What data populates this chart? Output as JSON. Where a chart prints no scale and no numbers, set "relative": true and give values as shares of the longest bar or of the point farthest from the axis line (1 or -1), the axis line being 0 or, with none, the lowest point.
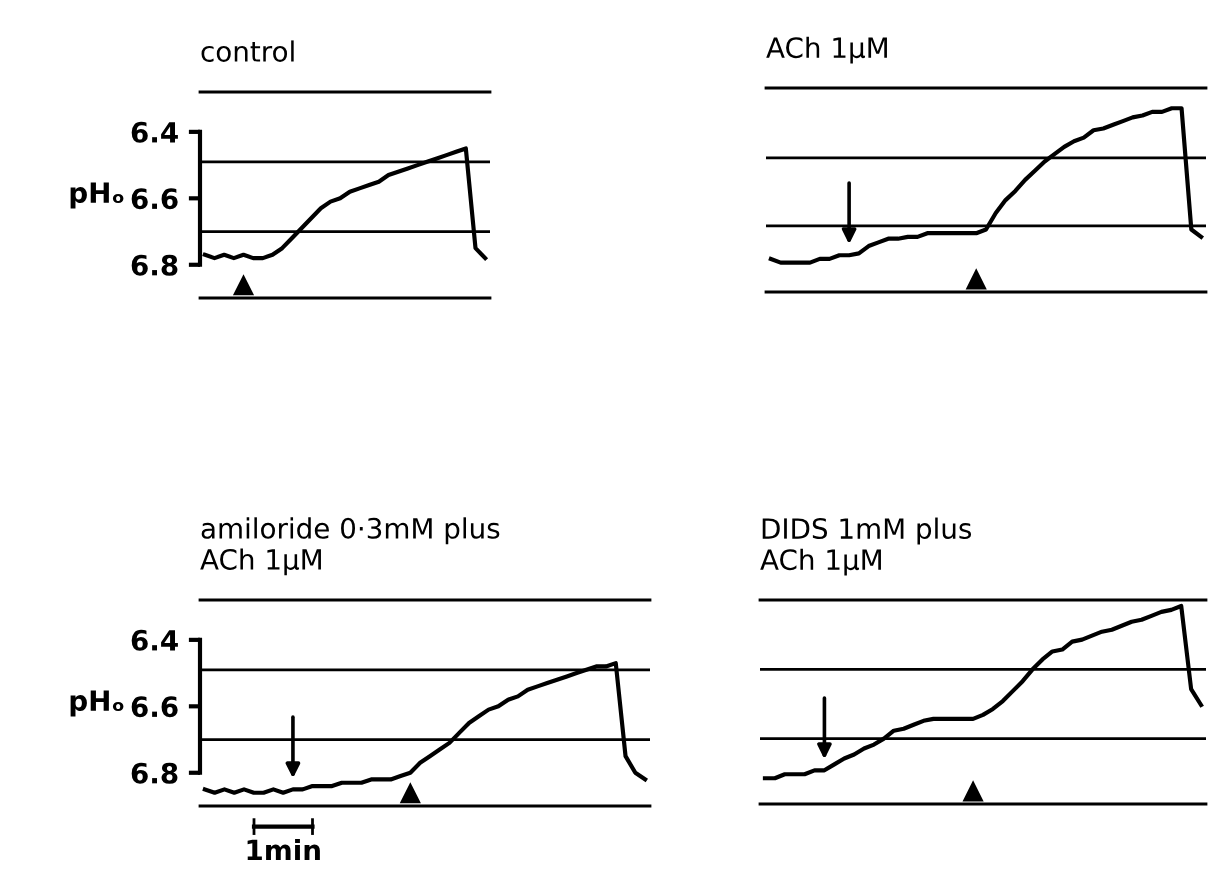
{
  "chart_data": [
    {
      "type": "line",
      "title": "control",
      "ylabel": "pHₒ",
      "categories": [
        null,
        null,
        null,
        null,
        null,
        null,
        null,
        null,
        null,
        null,
        null,
        null,
        null,
        null,
        null,
        null,
        null,
        null,
        null,
        null,
        null,
        null,
        null,
        null,
        null,
        null,
        null,
        null,
        null,
        null
      ],
      "series": [
        {
          "color": "#000000",
          "values": [
            6.77,
            6.78,
            6.77,
            6.78,
            6.77,
            6.78,
            6.78,
            6.77,
            6.75,
            6.72,
            6.69,
            6.66,
            6.63,
            6.61,
            6.6,
            6.58,
            6.57,
            6.56,
            6.55,
            6.53,
            6.52,
            6.51,
            6.5,
            6.49,
            6.48,
            6.47,
            6.46,
            6.45,
            6.75,
            6.78
          ]
        }
      ],
      "ylim": [
        6.9,
        6.28
      ],
      "yticks": [
        6.4,
        6.6,
        6.8
      ],
      "tick_labels": "y",
      "grid": false,
      "legend": false,
      "ref_lines": [
        {
          "axis": "y",
          "value": 6.49
        },
        {
          "axis": "y",
          "value": 6.7
        }
      ]
    },
    {
      "type": "line",
      "title": "ACh 1μM",
      "relative": true,
      "categories": [
        null,
        null,
        null,
        null,
        null,
        null,
        null,
        null,
        null,
        null,
        null,
        null,
        null,
        null,
        null,
        null,
        null,
        null,
        null,
        null,
        null,
        null,
        null,
        null,
        null,
        null,
        null,
        null,
        null,
        null,
        null,
        null,
        null,
        null,
        null,
        null,
        null,
        null,
        null,
        null,
        null,
        null,
        null,
        null,
        null
      ],
      "series": [
        {
          "color": "#000000",
          "values": [
            0.18,
            0.16,
            0.16,
            0.16,
            0.16,
            0.18,
            0.18,
            0.2,
            0.2,
            0.21,
            0.25,
            0.27,
            0.29,
            0.29,
            0.3,
            0.3,
            0.32,
            0.32,
            0.32,
            0.32,
            0.32,
            0.32,
            0.34,
            0.43,
            0.5,
            0.55,
            0.61,
            0.66,
            0.71,
            0.75,
            0.79,
            0.82,
            0.84,
            0.88,
            0.89,
            0.91,
            0.93,
            0.95,
            0.96,
            0.98,
            0.98,
            1,
            1,
            0.34,
            0.3
          ]
        }
      ],
      "tick_labels": false,
      "grid": false,
      "legend": false,
      "ref_lines": [
        {
          "axis": "y",
          "value": 0.73
        },
        {
          "axis": "y",
          "value": 0.36
        }
      ]
    },
    {
      "type": "line",
      "title": "amiloride 0·3mM plus\nACh 1μM",
      "ylabel": "pHₒ",
      "annotations": [
        "1min"
      ],
      "categories": [
        null,
        null,
        null,
        null,
        null,
        null,
        null,
        null,
        null,
        null,
        null,
        null,
        null,
        null,
        null,
        null,
        null,
        null,
        null,
        null,
        null,
        null,
        null,
        null,
        null,
        null,
        null,
        null,
        null,
        null,
        null,
        null,
        null,
        null,
        null,
        null,
        null,
        null,
        null,
        null,
        null,
        null,
        null,
        null,
        null,
        null
      ],
      "series": [
        {
          "color": "#000000",
          "values": [
            6.85,
            6.86,
            6.85,
            6.86,
            6.85,
            6.86,
            6.86,
            6.85,
            6.86,
            6.85,
            6.85,
            6.84,
            6.84,
            6.84,
            6.83,
            6.83,
            6.83,
            6.82,
            6.82,
            6.82,
            6.81,
            6.8,
            6.77,
            6.75,
            6.73,
            6.71,
            6.68,
            6.65,
            6.63,
            6.61,
            6.6,
            6.58,
            6.57,
            6.55,
            6.54,
            6.53,
            6.52,
            6.51,
            6.5,
            6.49,
            6.48,
            6.48,
            6.47,
            6.75,
            6.8,
            6.82
          ]
        }
      ],
      "ylim": [
        6.9,
        6.28
      ],
      "yticks": [
        6.4,
        6.6,
        6.8
      ],
      "tick_labels": "y",
      "grid": false,
      "legend": false,
      "ref_lines": [
        {
          "axis": "y",
          "value": 6.49
        },
        {
          "axis": "y",
          "value": 6.7
        }
      ]
    },
    {
      "type": "line",
      "title": "DIDS 1mM plus\nACh 1μM",
      "relative": true,
      "categories": [
        null,
        null,
        null,
        null,
        null,
        null,
        null,
        null,
        null,
        null,
        null,
        null,
        null,
        null,
        null,
        null,
        null,
        null,
        null,
        null,
        null,
        null,
        null,
        null,
        null,
        null,
        null,
        null,
        null,
        null,
        null,
        null,
        null,
        null,
        null,
        null,
        null,
        null,
        null,
        null,
        null,
        null,
        null,
        null,
        null
      ],
      "series": [
        {
          "color": "#000000",
          "values": [
            0.13,
            0.13,
            0.15,
            0.15,
            0.15,
            0.17,
            0.17,
            0.2,
            0.23,
            0.25,
            0.28,
            0.3,
            0.33,
            0.37,
            0.38,
            0.4,
            0.42,
            0.43,
            0.43,
            0.43,
            0.43,
            0.43,
            0.45,
            0.48,
            0.52,
            0.57,
            0.62,
            0.68,
            0.73,
            0.77,
            0.78,
            0.82,
            0.83,
            0.85,
            0.87,
            0.88,
            0.9,
            0.92,
            0.93,
            0.95,
            0.97,
            0.98,
            1,
            0.58,
            0.5
          ]
        }
      ],
      "tick_labels": false,
      "grid": false,
      "legend": false,
      "ref_lines": [
        {
          "axis": "y",
          "value": 0.68
        },
        {
          "axis": "y",
          "value": 0.33
        }
      ]
    }
  ]
}
